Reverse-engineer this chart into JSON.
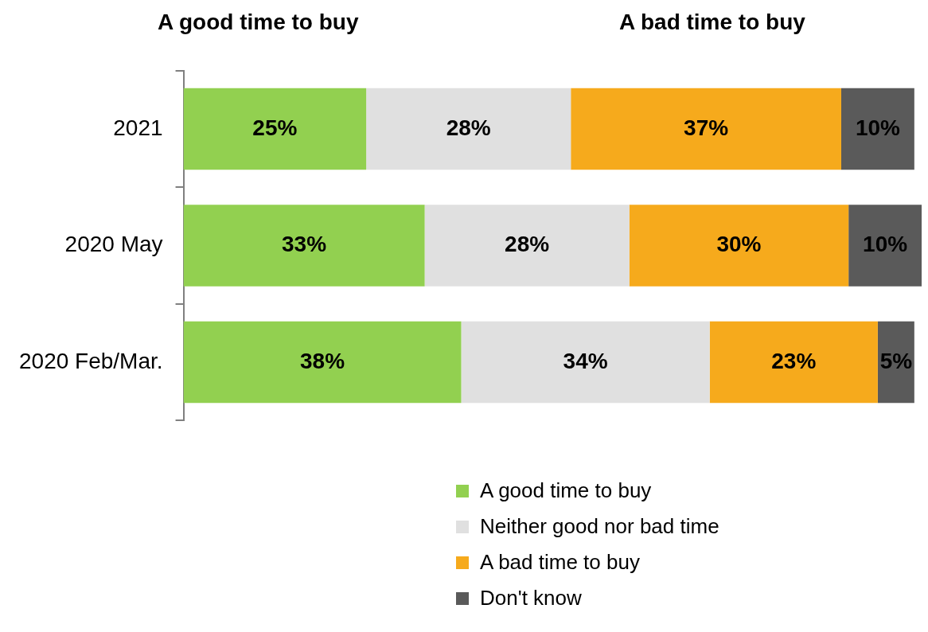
{
  "chart_data": {
    "type": "bar",
    "orientation": "horizontal",
    "stacked": true,
    "categories": [
      "2021",
      "2020 May",
      "2020 Feb/Mar."
    ],
    "series": [
      {
        "name": "A good time to buy",
        "color": "#92d050",
        "values": [
          25,
          33,
          38
        ],
        "value_labels": [
          "25%",
          "33%",
          "38%"
        ]
      },
      {
        "name": "Neither good nor bad time",
        "color": "#e0e0e0",
        "values": [
          28,
          28,
          34
        ],
        "value_labels": [
          "28%",
          "28%",
          "34%"
        ]
      },
      {
        "name": "A bad time to buy",
        "color": "#f6aa1c",
        "values": [
          37,
          30,
          23
        ],
        "value_labels": [
          "37%",
          "30%",
          "23%"
        ]
      },
      {
        "name": "Don't know",
        "color": "#5a5a5a",
        "values": [
          10,
          10,
          5
        ],
        "value_labels": [
          "10%",
          "10%",
          "5%"
        ]
      }
    ],
    "annotations": [
      "A good time to buy",
      "A bad time to buy"
    ],
    "legend": "bottom",
    "grid": false
  }
}
